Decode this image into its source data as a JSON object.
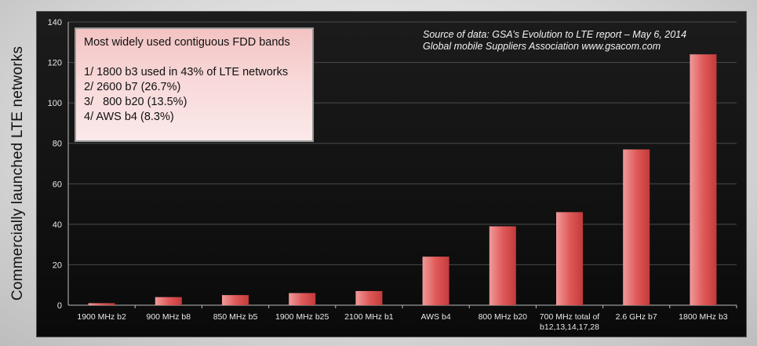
{
  "chart_data": {
    "type": "bar",
    "ylabel": "Commercially launched LTE networks",
    "xlabel": "",
    "ylim": [
      0,
      140
    ],
    "yticks": [
      0,
      20,
      40,
      60,
      80,
      100,
      120,
      140
    ],
    "grid": true,
    "categories": [
      [
        "1900 MHz b2"
      ],
      [
        "900 MHz b8"
      ],
      [
        "850 MHz b5"
      ],
      [
        "1900 MHz b25"
      ],
      [
        "2100 MHz b1"
      ],
      [
        "AWS b4"
      ],
      [
        "800 MHz b20"
      ],
      [
        "700 MHz total of",
        "b12,13,14,17,28"
      ],
      [
        "2.6 GHz b7"
      ],
      [
        "1800 MHz b3"
      ]
    ],
    "values": [
      1,
      4,
      5,
      6,
      7,
      24,
      39,
      46,
      77,
      124
    ],
    "bar_color": "#e05a5a",
    "background_color": "#111111",
    "annotations": {
      "callout_title": "Most widely used contiguous FDD bands",
      "callout_lines": [
        "1/ 1800 b3 used in 43% of LTE networks",
        "2/ 2600 b7 (26.7%)",
        "3/   800 b20 (13.5%)",
        "4/ AWS b4 (8.3%)"
      ],
      "source_line1": "Source of data: GSA’s Evolution to LTE report – May 6, 2014",
      "source_line2": "Global mobile Suppliers Association www.gsacom.com"
    }
  }
}
